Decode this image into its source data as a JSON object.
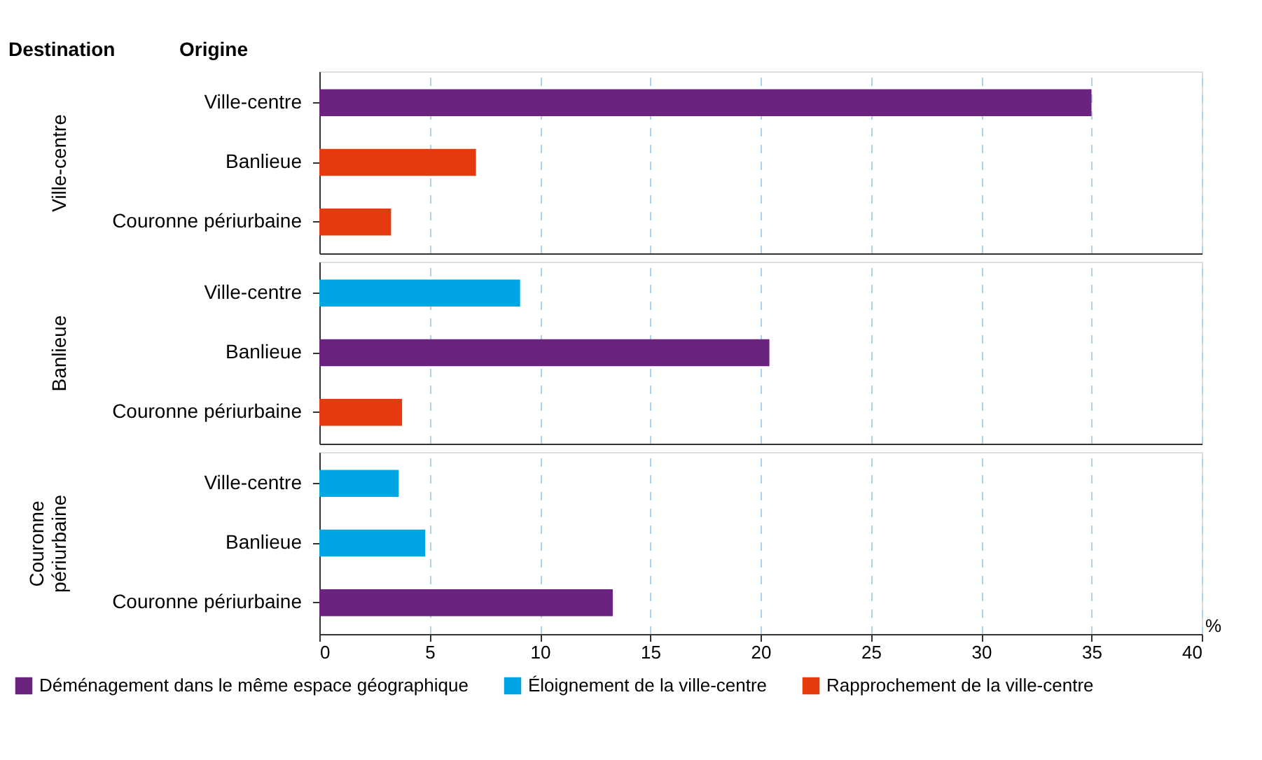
{
  "chart_data": [
    {
      "type": "bar",
      "orientation": "horizontal",
      "ylabel": "Ville-centre",
      "annotations": [
        "Destination",
        "Origine"
      ],
      "categories": [
        "Ville-centre",
        "Banlieue",
        "Couronne périurbaine"
      ],
      "series": [
        {
          "color": "#6b2380",
          "values": [
            35,
            null,
            null
          ]
        },
        {
          "color": "#e6390d",
          "values": [
            null,
            7.1,
            3.25
          ]
        }
      ],
      "xlim": [
        0,
        40
      ],
      "xticks": [
        0,
        5,
        10,
        15,
        20,
        25,
        30,
        35,
        40
      ],
      "grid": "x",
      "tick_labels": "y"
    },
    {
      "type": "bar",
      "orientation": "horizontal",
      "ylabel": "Banlieue",
      "categories": [
        "Ville-centre",
        "Banlieue",
        "Couronne périurbaine"
      ],
      "series": [
        {
          "color": "#6b2380",
          "values": [
            null,
            20.4,
            null
          ]
        },
        {
          "color": "#00a5e3",
          "values": [
            9.1,
            null,
            null
          ]
        },
        {
          "color": "#e6390d",
          "values": [
            null,
            null,
            3.75
          ]
        }
      ],
      "xlim": [
        0,
        40
      ],
      "xticks": [
        0,
        5,
        10,
        15,
        20,
        25,
        30,
        35,
        40
      ],
      "grid": "x",
      "tick_labels": "y"
    },
    {
      "type": "bar",
      "orientation": "horizontal",
      "ylabel": "Couronne périurbaine",
      "xlabel": "%",
      "categories": [
        "Ville-centre",
        "Banlieue",
        "Couronne périurbaine"
      ],
      "series": [
        {
          "name": "Déménagement dans le même espace géographique",
          "color": "#6b2380",
          "values": [
            null,
            null,
            13.3
          ]
        },
        {
          "name": "Éloignement de la ville-centre",
          "color": "#00a5e3",
          "values": [
            3.6,
            4.8,
            null
          ]
        },
        {
          "name": "Rapprochement de la ville-centre",
          "color": "#e6390d",
          "values": [
            null,
            null,
            null
          ]
        }
      ],
      "xlim": [
        0,
        40
      ],
      "xticks": [
        0,
        5,
        10,
        15,
        20,
        25,
        30,
        35,
        40
      ],
      "grid": "x",
      "legend": "bottom"
    }
  ]
}
